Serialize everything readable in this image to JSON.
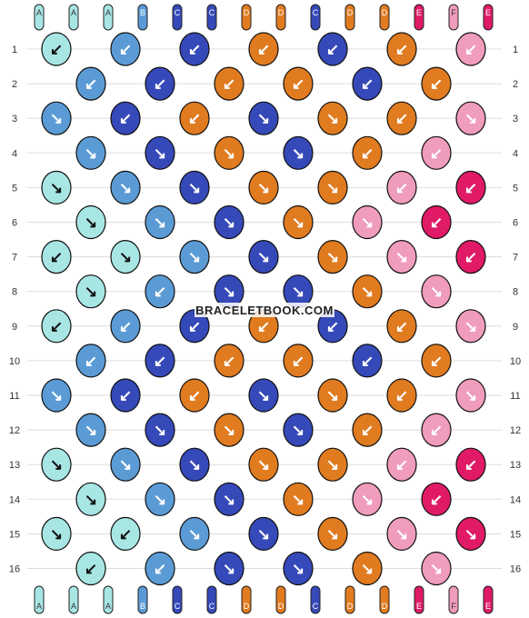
{
  "watermark": "BRACELETBOOK.COM",
  "colors": {
    "A": "#a8e6e4",
    "B": "#5b9bd5",
    "C": "#3549b8",
    "D": "#e07b20",
    "E": "#e01a66",
    "F": "#f09cbc"
  },
  "strands_top": [
    "A",
    "A",
    "A",
    "B",
    "C",
    "C",
    "D",
    "D",
    "C",
    "D",
    "D",
    "E",
    "F",
    "E"
  ],
  "strands_bottom": [
    "A",
    "A",
    "A",
    "B",
    "C",
    "C",
    "D",
    "D",
    "C",
    "D",
    "D",
    "E",
    "F",
    "E"
  ],
  "row_labels": [
    "1",
    "2",
    "3",
    "4",
    "5",
    "6",
    "7",
    "8",
    "9",
    "10",
    "11",
    "12",
    "13",
    "14",
    "15",
    "16"
  ],
  "knots": [
    [
      "A:↙",
      "B:↙",
      "C:↙",
      "D:↙",
      "C:↙",
      "D:↙",
      "F:↙"
    ],
    [
      "B:↙",
      "C:↙",
      "D:↙",
      "D:↙",
      "C:↙",
      "D:↙"
    ],
    [
      "B:↘",
      "C:↙",
      "D:↙",
      "C:↘",
      "D:↘",
      "D:↙",
      "F:↘"
    ],
    [
      "B:↘",
      "C:↘",
      "D:↘",
      "C:↘",
      "D:↙",
      "F:↙"
    ],
    [
      "A:↘",
      "B:↘",
      "C:↘",
      "D:↘",
      "D:↘",
      "F:↙",
      "E:↙"
    ],
    [
      "A:↘",
      "B:↘",
      "C:↘",
      "D:↘",
      "F:↘",
      "E:↙"
    ],
    [
      "A:↙",
      "A:↘",
      "B:↘",
      "C:↘",
      "D:↘",
      "F:↘",
      "E:↙"
    ],
    [
      "A:↘",
      "B:↙",
      "C:↘",
      "C:↘",
      "D:↘",
      "F:↘"
    ],
    [
      "A:↙",
      "B:↙",
      "C:↙",
      "D:↙",
      "C:↙",
      "D:↙",
      "F:↘"
    ],
    [
      "B:↙",
      "C:↙",
      "D:↙",
      "D:↙",
      "C:↙",
      "D:↙"
    ],
    [
      "B:↘",
      "C:↙",
      "D:↙",
      "C:↘",
      "D:↘",
      "D:↙",
      "F:↘"
    ],
    [
      "B:↘",
      "C:↘",
      "D:↘",
      "C:↘",
      "D:↙",
      "F:↙"
    ],
    [
      "A:↘",
      "B:↘",
      "C:↘",
      "D:↘",
      "D:↘",
      "F:↙",
      "E:↙"
    ],
    [
      "A:↘",
      "B:↘",
      "C:↘",
      "D:↘",
      "F:↘",
      "E:↙"
    ],
    [
      "A:↘",
      "A:↙",
      "B:↘",
      "C:↘",
      "D:↘",
      "F:↘",
      "E:↘"
    ],
    [
      "A:↙",
      "B:↙",
      "C:↘",
      "C:↘",
      "D:↘",
      "F:↘"
    ]
  ]
}
